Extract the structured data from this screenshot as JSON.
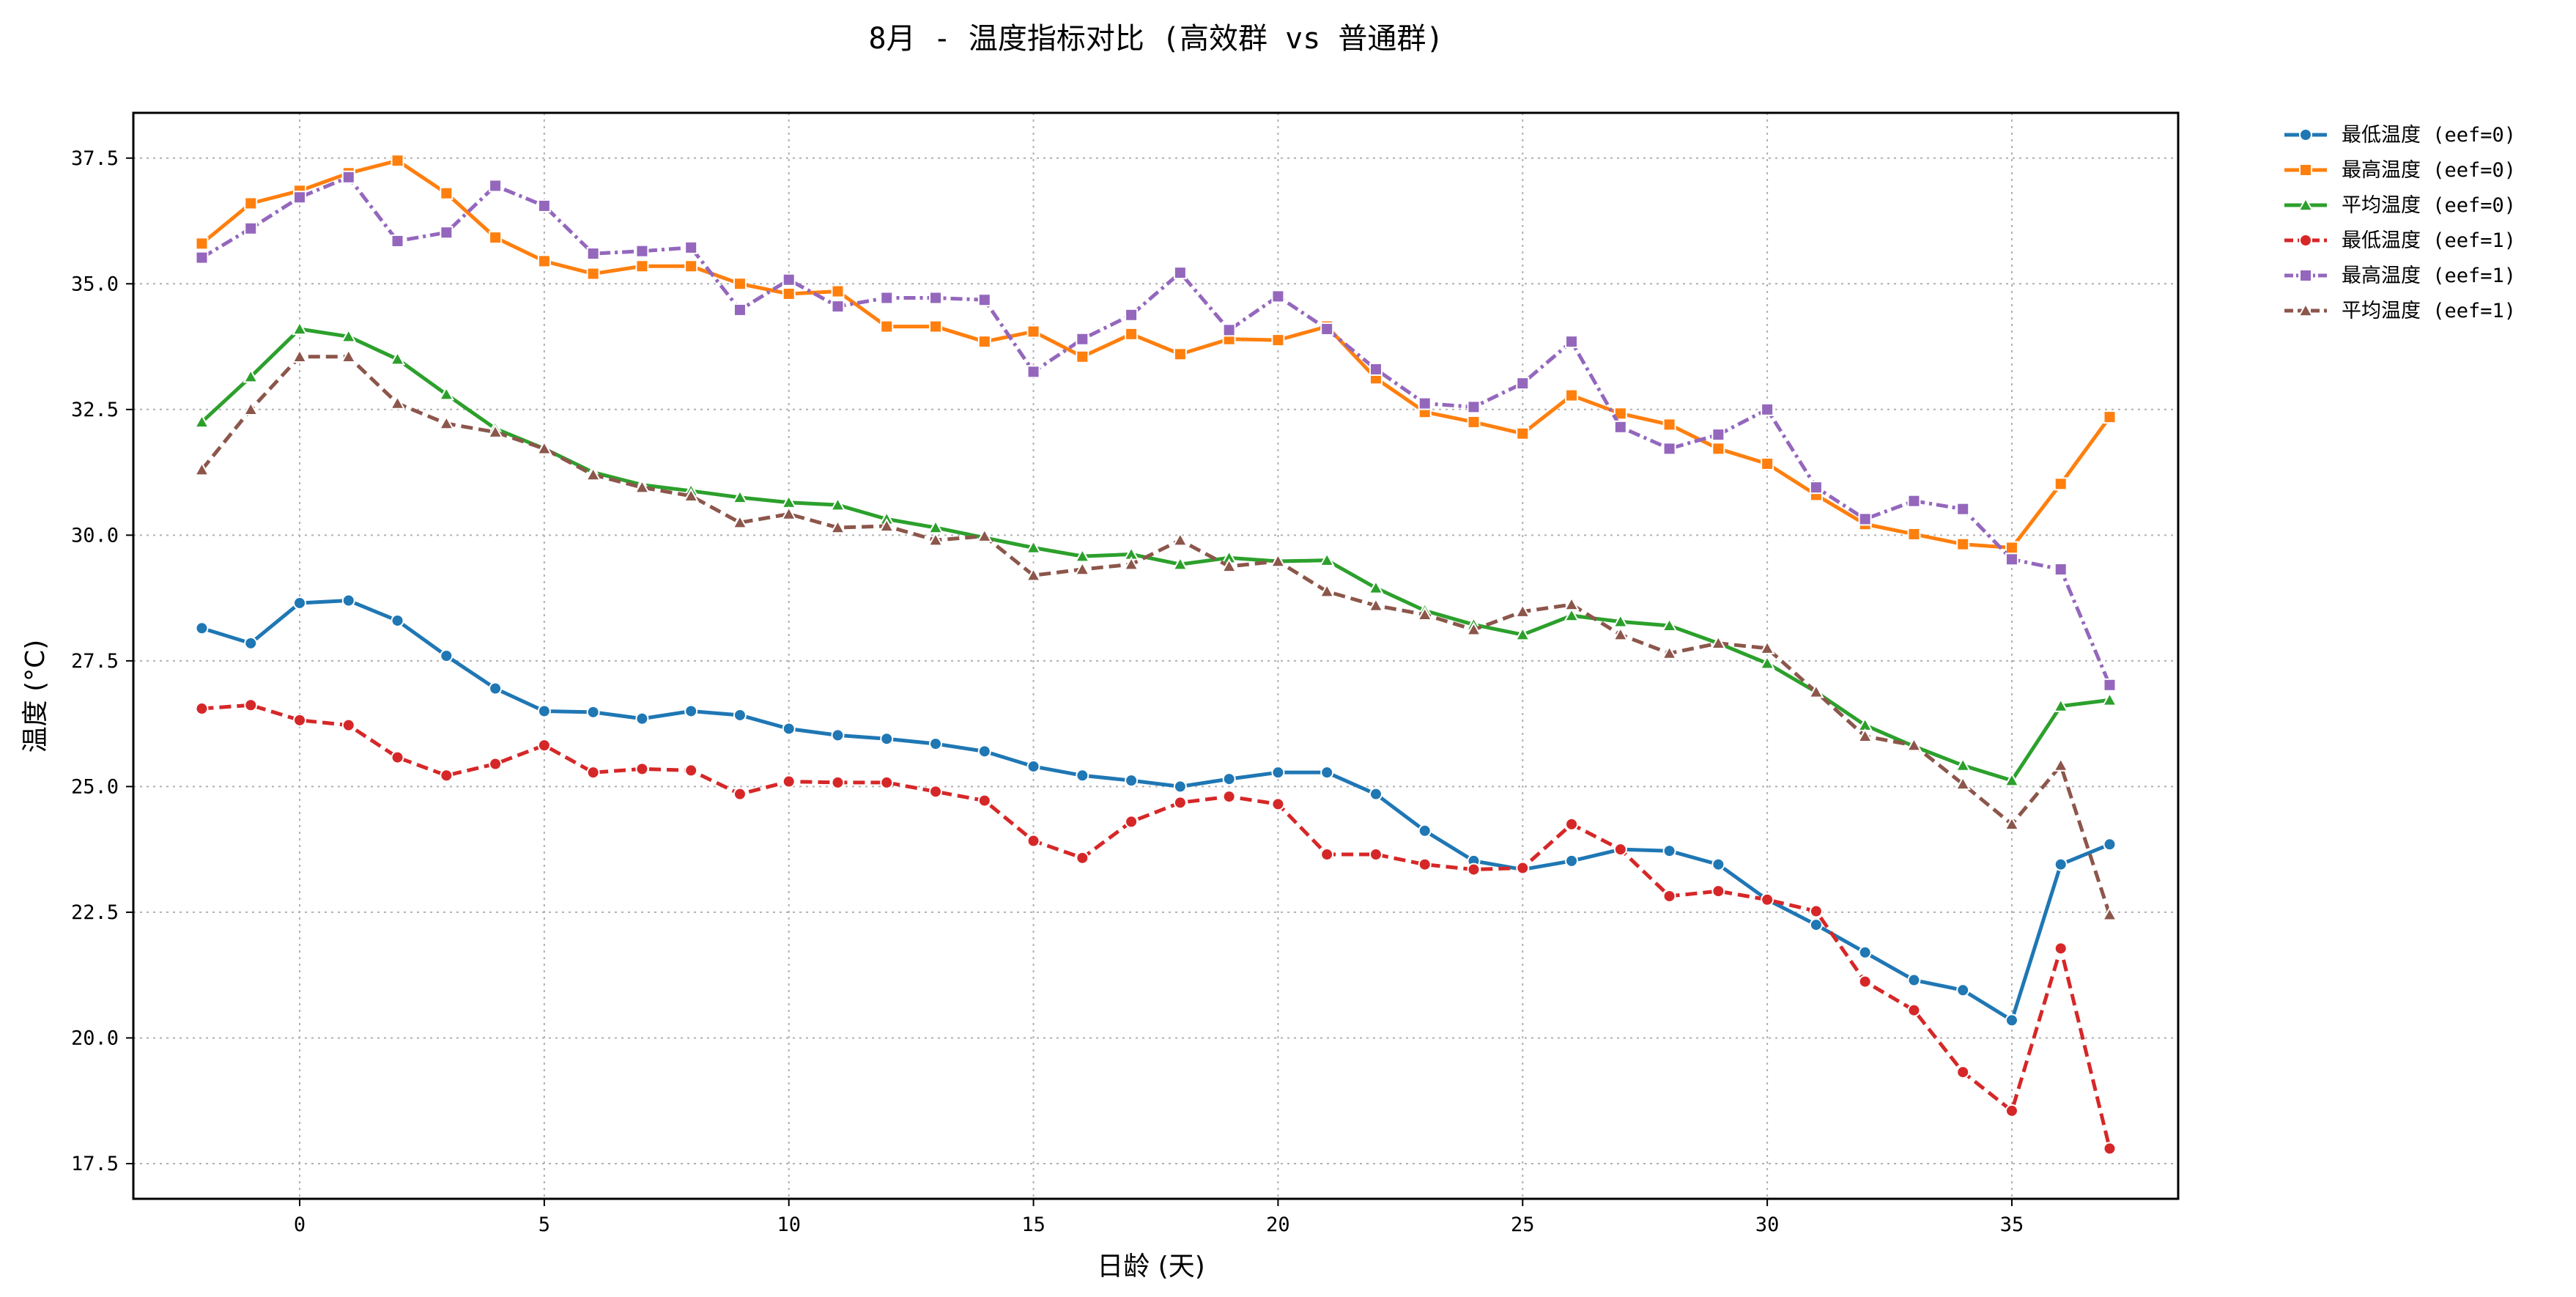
{
  "chart_data": {
    "type": "line",
    "title": "8月 - 温度指标对比 (高效群 vs 普通群)",
    "xlabel": "日龄 (天)",
    "ylabel": "温度 (°C)",
    "xlim": [
      -3.4,
      38.4
    ],
    "ylim": [
      16.8,
      38.4
    ],
    "xticks": [
      0,
      5,
      10,
      15,
      20,
      25,
      30,
      35
    ],
    "xtick_labels": [
      "0",
      "5",
      "10",
      "15",
      "20",
      "25",
      "30",
      "35"
    ],
    "yticks": [
      17.5,
      20.0,
      22.5,
      25.0,
      27.5,
      30.0,
      32.5,
      35.0,
      37.5
    ],
    "ytick_labels": [
      "17.5",
      "20.0",
      "22.5",
      "25.0",
      "27.5",
      "30.0",
      "32.5",
      "35.0",
      "37.5"
    ],
    "grid": true,
    "legend_position": "outside-top-right",
    "x": [
      -2,
      -1,
      0,
      1,
      2,
      3,
      4,
      5,
      6,
      7,
      8,
      9,
      10,
      11,
      12,
      13,
      14,
      15,
      16,
      17,
      18,
      19,
      20,
      21,
      22,
      23,
      24,
      25,
      26,
      27,
      28,
      29,
      30,
      31,
      32,
      33,
      34,
      35,
      36,
      37
    ],
    "series": [
      {
        "name": "最低温度 (eef=0)",
        "color": "#1f77b4",
        "marker": "circle",
        "dash": "solid",
        "values": [
          28.15,
          27.85,
          28.65,
          28.7,
          28.3,
          27.6,
          26.95,
          26.5,
          26.48,
          26.35,
          26.5,
          26.42,
          26.15,
          26.02,
          25.95,
          25.85,
          25.7,
          25.4,
          25.22,
          25.12,
          25.0,
          25.15,
          25.28,
          25.28,
          24.85,
          24.12,
          23.52,
          23.35,
          23.52,
          23.75,
          23.72,
          23.45,
          22.75,
          22.25,
          21.7,
          21.15,
          20.95,
          20.35,
          23.45,
          23.85
        ]
      },
      {
        "name": "最高温度 (eef=0)",
        "color": "#ff7f0e",
        "marker": "square",
        "dash": "solid",
        "values": [
          35.8,
          36.6,
          36.85,
          37.2,
          37.45,
          36.8,
          35.92,
          35.45,
          35.2,
          35.35,
          35.35,
          35.0,
          34.8,
          34.85,
          34.15,
          34.15,
          33.85,
          34.05,
          33.55,
          34.0,
          33.6,
          33.9,
          33.88,
          34.15,
          33.12,
          32.45,
          32.25,
          32.02,
          32.78,
          32.42,
          32.2,
          31.72,
          31.42,
          30.8,
          30.22,
          30.02,
          29.82,
          29.75,
          31.02,
          32.35
        ]
      },
      {
        "name": "平均温度 (eef=0)",
        "color": "#2ca02c",
        "marker": "triangle",
        "dash": "solid",
        "values": [
          32.25,
          33.15,
          34.1,
          33.95,
          33.5,
          32.8,
          32.12,
          31.72,
          31.25,
          31.0,
          30.88,
          30.75,
          30.65,
          30.6,
          30.32,
          30.15,
          29.95,
          29.75,
          29.58,
          29.62,
          29.42,
          29.55,
          29.48,
          29.5,
          28.95,
          28.5,
          28.22,
          28.02,
          28.4,
          28.28,
          28.2,
          27.85,
          27.45,
          26.88,
          26.22,
          25.8,
          25.42,
          25.12,
          26.6,
          26.72
        ]
      },
      {
        "name": "最低温度 (eef=1)",
        "color": "#d62728",
        "marker": "circle",
        "dash": "dashed",
        "values": [
          26.55,
          26.62,
          26.32,
          26.22,
          25.58,
          25.22,
          25.45,
          25.82,
          25.28,
          25.35,
          25.32,
          24.85,
          25.1,
          25.08,
          25.08,
          24.9,
          24.72,
          23.92,
          23.58,
          24.3,
          24.68,
          24.8,
          24.65,
          23.65,
          23.65,
          23.45,
          23.35,
          23.38,
          24.25,
          23.75,
          22.82,
          22.92,
          22.75,
          22.52,
          21.12,
          20.55,
          19.32,
          18.55,
          21.78,
          17.8
        ]
      },
      {
        "name": "最高温度 (eef=1)",
        "color": "#9467bd",
        "marker": "square",
        "dash": "dashdot",
        "values": [
          35.52,
          36.1,
          36.72,
          37.12,
          35.85,
          36.02,
          36.95,
          36.55,
          35.6,
          35.65,
          35.72,
          34.48,
          35.08,
          34.55,
          34.72,
          34.72,
          34.68,
          33.25,
          33.9,
          34.38,
          35.22,
          34.08,
          34.75,
          34.1,
          33.3,
          32.62,
          32.55,
          33.02,
          33.85,
          32.15,
          31.72,
          32.0,
          32.5,
          30.95,
          30.32,
          30.68,
          30.52,
          29.52,
          29.32,
          27.02
        ]
      },
      {
        "name": "平均温度 (eef=1)",
        "color": "#8c564b",
        "marker": "triangle",
        "dash": "dashed",
        "values": [
          31.3,
          32.5,
          33.55,
          33.55,
          32.62,
          32.22,
          32.05,
          31.72,
          31.2,
          30.95,
          30.78,
          30.25,
          30.42,
          30.15,
          30.18,
          29.9,
          29.98,
          29.2,
          29.32,
          29.42,
          29.9,
          29.38,
          29.48,
          28.88,
          28.6,
          28.42,
          28.12,
          28.48,
          28.62,
          28.02,
          27.65,
          27.85,
          27.75,
          26.88,
          26.0,
          25.82,
          25.05,
          24.25,
          25.42,
          22.45
        ]
      }
    ]
  }
}
